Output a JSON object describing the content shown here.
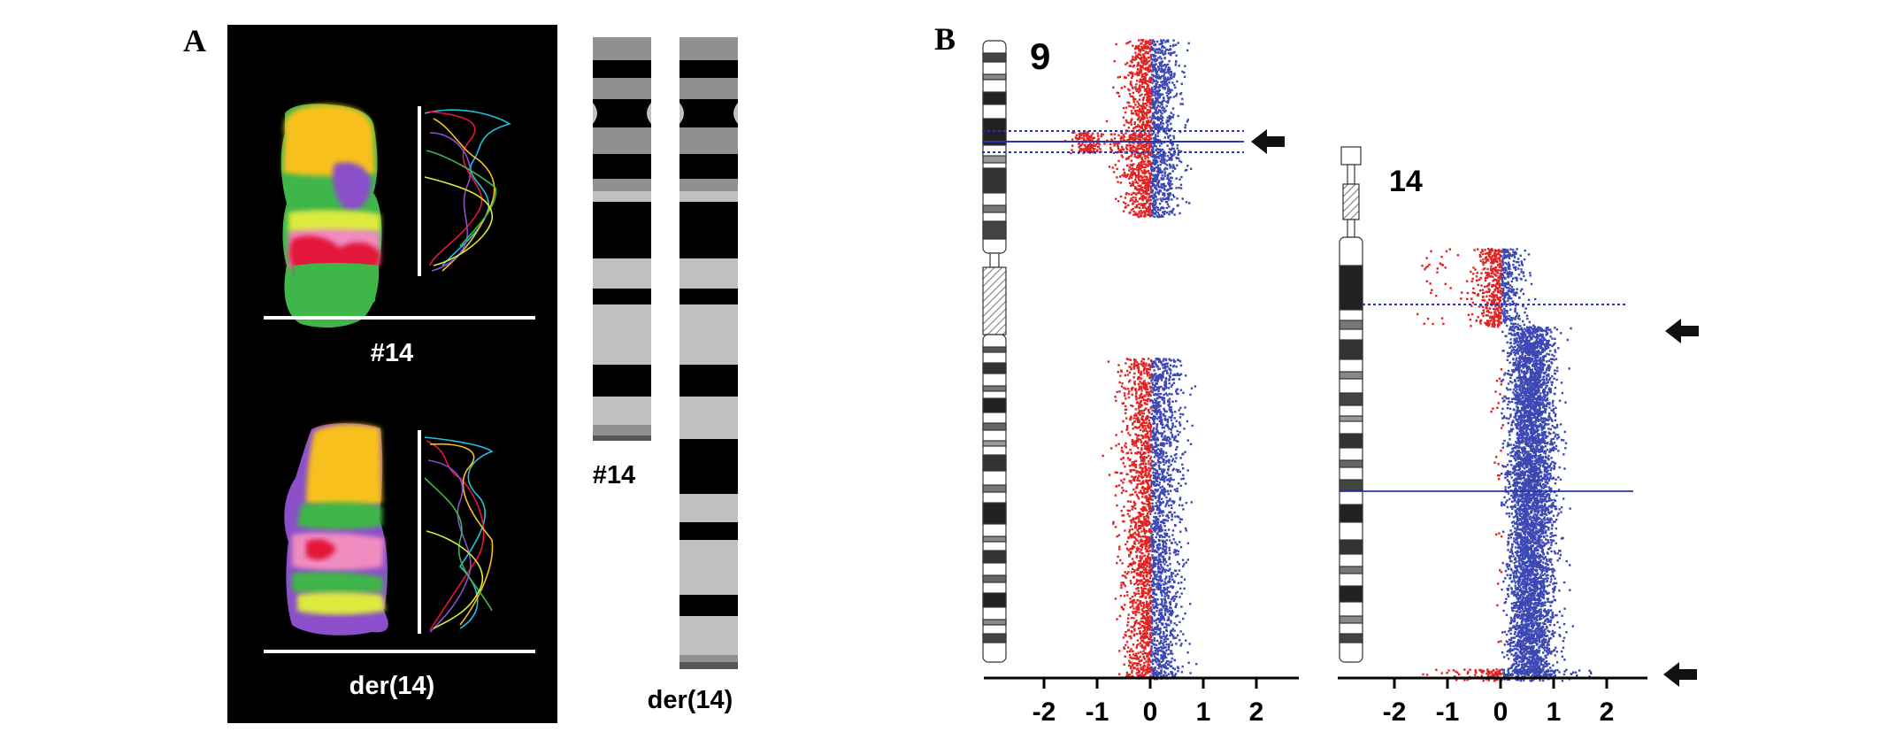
{
  "panels": [
    {
      "id": "A",
      "label": "A"
    },
    {
      "id": "B",
      "label": "B"
    }
  ],
  "panel_a": {
    "mfish": [
      {
        "id": "normal",
        "label": "#14"
      },
      {
        "id": "derivative",
        "label": "der(14)"
      }
    ],
    "ideograms": [
      {
        "id": "normal",
        "label": "#14"
      },
      {
        "id": "derivative",
        "label": "der(14)"
      }
    ],
    "colors": {
      "background": "#000000",
      "yellow": "#f7c01e",
      "green": "#3fb54a",
      "purple": "#8a4fc9",
      "pink": "#f08cc0",
      "red": "#e3173a",
      "lime": "#dcea3c"
    }
  },
  "panel_b": {
    "plots": [
      {
        "id": "chr9",
        "chromosome_label": "9",
        "x_ticks": [
          "-2",
          "-1",
          "0",
          "1",
          "2"
        ]
      },
      {
        "id": "chr14",
        "chromosome_label": "14",
        "x_ticks": [
          "-2",
          "-1",
          "0",
          "1",
          "2"
        ]
      }
    ],
    "colors": {
      "loss": "#e02424",
      "gain": "#3c48b4",
      "line": "#2a35a8"
    },
    "arrow_icon": "left-arrow-icon"
  }
}
